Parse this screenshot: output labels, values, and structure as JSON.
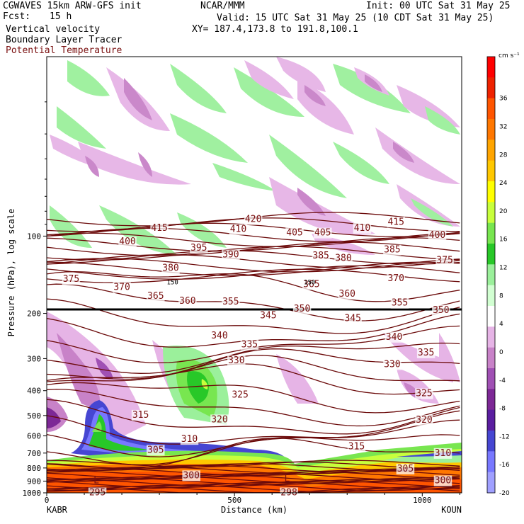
{
  "header": {
    "model": "CGWAVES 15km ARW-GFS init",
    "fcst_label": "Fcst:",
    "fcst_value": "15 h",
    "field1": "Vertical velocity",
    "field2": "Boundary Layer Tracer",
    "field3": "Potential Temperature",
    "center": "NCAR/MMM",
    "init": "Init: 00 UTC Sat 31 May 25",
    "valid": "Valid: 15 UTC Sat 31 May 25 (10 CDT Sat 31 May 25)",
    "xy": "XY= 187.4,173.8 to 191.8,100.1"
  },
  "colors": {
    "theta_contour": "#6b0a0a",
    "tropopause": "#000000"
  },
  "chart_data": {
    "type": "heatmap",
    "xlabel": "Distance (km)",
    "ylabel": "Pressure (hPa), log scale",
    "x_ticks": [
      0,
      500,
      1000
    ],
    "xlim": [
      0,
      1105
    ],
    "y_ticks": [
      100,
      200,
      300,
      400,
      500,
      600,
      700,
      800,
      900,
      1000
    ],
    "ylim": [
      1000,
      20
    ],
    "y_scale": "log",
    "left_station": "KABR",
    "right_station": "KOUN",
    "colorbar": {
      "unit": "cm s⁻¹",
      "levels": [
        36,
        32,
        28,
        24,
        20,
        16,
        12,
        8,
        4,
        0,
        -4,
        -8,
        -12,
        -16,
        -20
      ],
      "colors": [
        "#ff0000",
        "#ee2200",
        "#ff5500",
        "#ff7700",
        "#ffa500",
        "#ffc800",
        "#ffff00",
        "#c8ff3c",
        "#78e650",
        "#28c828",
        "#9bf09b",
        "#d2ffd2",
        "#ffffff",
        "#e6b4e6",
        "#c882c8",
        "#a050b4",
        "#7d2896",
        "#5a1ea0",
        "#4646d2",
        "#7878ff",
        "#a0a0ff"
      ]
    },
    "theta_labels": [
      {
        "text": "420",
        "x": 550,
        "p": 86
      },
      {
        "text": "415",
        "x": 300,
        "p": 93
      },
      {
        "text": "415",
        "x": 930,
        "p": 88
      },
      {
        "text": "410",
        "x": 510,
        "p": 94
      },
      {
        "text": "410",
        "x": 840,
        "p": 93
      },
      {
        "text": "405",
        "x": 660,
        "p": 97
      },
      {
        "text": "405",
        "x": 735,
        "p": 97
      },
      {
        "text": "400",
        "x": 215,
        "p": 105
      },
      {
        "text": "400",
        "x": 1040,
        "p": 99
      },
      {
        "text": "395",
        "x": 405,
        "p": 111
      },
      {
        "text": "390",
        "x": 490,
        "p": 118
      },
      {
        "text": "385",
        "x": 730,
        "p": 119
      },
      {
        "text": "385",
        "x": 920,
        "p": 113
      },
      {
        "text": "380",
        "x": 330,
        "p": 133
      },
      {
        "text": "380",
        "x": 790,
        "p": 122
      },
      {
        "text": "375",
        "x": 65,
        "p": 147
      },
      {
        "text": "375",
        "x": 1060,
        "p": 124
      },
      {
        "text": "370",
        "x": 200,
        "p": 158
      },
      {
        "text": "370",
        "x": 930,
        "p": 146
      },
      {
        "text": "365",
        "x": 290,
        "p": 171
      },
      {
        "text": "365",
        "x": 705,
        "p": 154
      },
      {
        "text": "360",
        "x": 375,
        "p": 179
      },
      {
        "text": "360",
        "x": 800,
        "p": 168
      },
      {
        "text": "355",
        "x": 490,
        "p": 180
      },
      {
        "text": "355",
        "x": 940,
        "p": 182
      },
      {
        "text": "350",
        "x": 680,
        "p": 192
      },
      {
        "text": "350",
        "x": 1050,
        "p": 194
      },
      {
        "text": "345",
        "x": 590,
        "p": 204
      },
      {
        "text": "345",
        "x": 815,
        "p": 209
      },
      {
        "text": "340",
        "x": 460,
        "p": 244
      },
      {
        "text": "340",
        "x": 925,
        "p": 247
      },
      {
        "text": "335",
        "x": 540,
        "p": 264
      },
      {
        "text": "335",
        "x": 1010,
        "p": 284
      },
      {
        "text": "330",
        "x": 505,
        "p": 305
      },
      {
        "text": "330",
        "x": 920,
        "p": 316
      },
      {
        "text": "325",
        "x": 515,
        "p": 415
      },
      {
        "text": "325",
        "x": 1005,
        "p": 410
      },
      {
        "text": "320",
        "x": 460,
        "p": 518
      },
      {
        "text": "320",
        "x": 1005,
        "p": 520
      },
      {
        "text": "315",
        "x": 250,
        "p": 497
      },
      {
        "text": "315",
        "x": 825,
        "p": 660
      },
      {
        "text": "310",
        "x": 380,
        "p": 618
      },
      {
        "text": "310",
        "x": 1055,
        "p": 700
      },
      {
        "text": "305",
        "x": 290,
        "p": 680
      },
      {
        "text": "305",
        "x": 955,
        "p": 805
      },
      {
        "text": "300",
        "x": 385,
        "p": 855
      },
      {
        "text": "300",
        "x": 1055,
        "p": 895
      },
      {
        "text": "295",
        "x": 135,
        "p": 997
      },
      {
        "text": "298",
        "x": 645,
        "p": 997
      }
    ],
    "annotations": [
      {
        "text": "L",
        "x": 132,
        "p": 895
      },
      {
        "text": "L",
        "x": 640,
        "p": 880
      },
      {
        "text": "150",
        "x": 335,
        "p": 150
      },
      {
        "text": "150",
        "x": 700,
        "p": 150
      }
    ]
  }
}
